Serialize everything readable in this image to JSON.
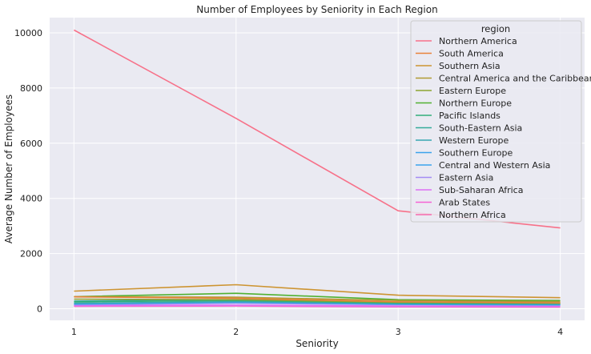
{
  "chart_data": {
    "type": "line",
    "title": "Number of Employees by Seniority in Each Region",
    "xlabel": "Seniority",
    "ylabel": "Average Number of Employees",
    "x": [
      1,
      2,
      3,
      4
    ],
    "xlim": [
      0.85,
      4.15
    ],
    "ylim": [
      -420,
      10550
    ],
    "yticks": [
      0,
      2000,
      4000,
      6000,
      8000,
      10000
    ],
    "grid": true,
    "legend": {
      "title": "region",
      "position": "top-right"
    },
    "series": [
      {
        "name": "Northern America",
        "color": "#f77189",
        "values": [
          10100,
          6900,
          3550,
          2930
        ]
      },
      {
        "name": "South America",
        "color": "#e8823a",
        "values": [
          430,
          380,
          250,
          210
        ]
      },
      {
        "name": "Southern Asia",
        "color": "#cd9431",
        "values": [
          640,
          870,
          490,
          400
        ]
      },
      {
        "name": "Central America and the Caribbean",
        "color": "#b09b32",
        "values": [
          440,
          420,
          300,
          260
        ]
      },
      {
        "name": "Eastern Europe",
        "color": "#8ca431",
        "values": [
          350,
          330,
          240,
          210
        ]
      },
      {
        "name": "Northern Europe",
        "color": "#50b131",
        "values": [
          440,
          560,
          330,
          300
        ]
      },
      {
        "name": "Pacific Islands",
        "color": "#33b07a",
        "values": [
          250,
          300,
          210,
          190
        ]
      },
      {
        "name": "South-Eastern Asia",
        "color": "#35ac9b",
        "values": [
          280,
          330,
          250,
          220
        ]
      },
      {
        "name": "Western Europe",
        "color": "#38a8b1",
        "values": [
          200,
          260,
          190,
          170
        ]
      },
      {
        "name": "Southern Europe",
        "color": "#3ba3ec",
        "values": [
          180,
          230,
          170,
          150
        ]
      },
      {
        "name": "Central and Western Asia",
        "color": "#3ba3ec",
        "values": [
          170,
          240,
          160,
          140
        ]
      },
      {
        "name": "Eastern Asia",
        "color": "#a48cf4",
        "values": [
          150,
          200,
          150,
          130
        ]
      },
      {
        "name": "Sub-Saharan Africa",
        "color": "#dd6ff5",
        "values": [
          120,
          130,
          100,
          90
        ]
      },
      {
        "name": "Arab States",
        "color": "#f564d4",
        "values": [
          100,
          110,
          80,
          70
        ]
      },
      {
        "name": "Northern Africa",
        "color": "#f66bad",
        "values": [
          90,
          100,
          70,
          60
        ]
      }
    ]
  }
}
